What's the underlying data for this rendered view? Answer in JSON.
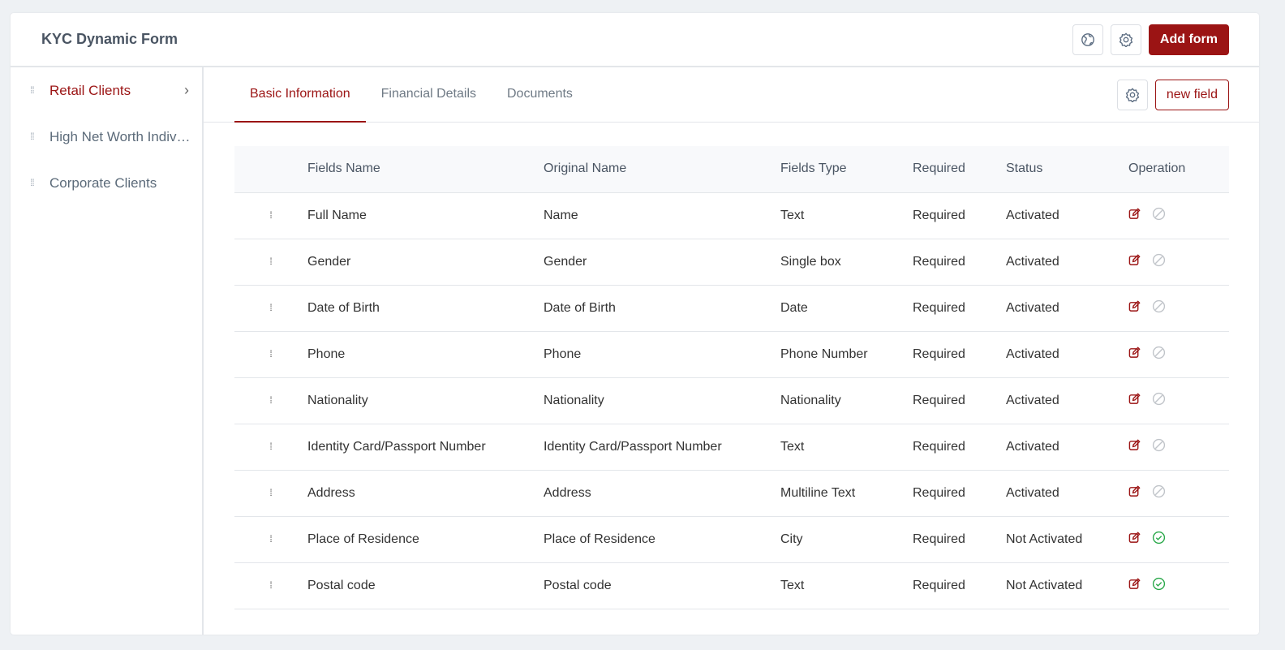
{
  "header": {
    "title": "KYC Dynamic Form",
    "add_form": "Add form"
  },
  "sidebar": {
    "items": [
      {
        "label": "Retail Clients",
        "active": true
      },
      {
        "label": "High Net Worth Individuals"
      },
      {
        "label": "Corporate Clients"
      }
    ]
  },
  "tabs": [
    {
      "label": "Basic Information",
      "active": true
    },
    {
      "label": "Financial Details"
    },
    {
      "label": "Documents"
    }
  ],
  "new_field": "new field",
  "table": {
    "columns": [
      "Fields Name",
      "Original Name",
      "Fields Type",
      "Required",
      "Status",
      "Operation"
    ],
    "rows": [
      [
        "Full Name",
        "Name",
        "Text",
        "Required",
        "Activated"
      ],
      [
        "Gender",
        "Gender",
        "Single box",
        "Required",
        "Activated"
      ],
      [
        "Date of Birth",
        "Date of Birth",
        "Date",
        "Required",
        "Activated"
      ],
      [
        "Phone",
        "Phone",
        "Phone Number",
        "Required",
        "Activated"
      ],
      [
        "Nationality",
        "Nationality",
        "Nationality",
        "Required",
        "Activated"
      ],
      [
        "Identity Card/Passport Number",
        "Identity Card/Passport Number",
        "Text",
        "Required",
        "Activated"
      ],
      [
        "Address",
        "Address",
        "Multiline Text",
        "Required",
        "Activated"
      ],
      [
        "Place of Residence",
        "Place of Residence",
        "City",
        "Required",
        "Not Activated"
      ],
      [
        "Postal code",
        "Postal code",
        "Text",
        "Required",
        "Not Activated"
      ]
    ]
  },
  "colors": {
    "accent": "#9b1414",
    "activate": "#2aa84a",
    "disabled": "#c0c4c9"
  }
}
